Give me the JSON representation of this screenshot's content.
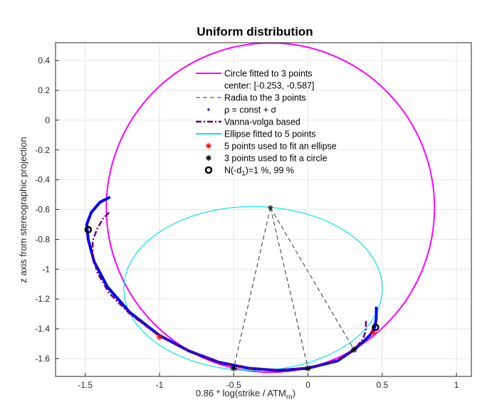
{
  "chart_data": {
    "type": "line",
    "title": "Uniform distribution",
    "xlabel": "0.86 * log(strike / ATM",
    "xlabel_sub": "rn",
    "xlabel_end": ")",
    "ylabel": "z axis from stereographic projection",
    "xlim": [
      -1.7,
      1.1
    ],
    "ylim": [
      -1.72,
      0.52
    ],
    "xticks": [
      -1.5,
      -1,
      -0.5,
      0,
      0.5,
      1
    ],
    "xtick_labels": [
      "-1.5",
      "-1",
      "-0.5",
      "0",
      "0.5",
      "1"
    ],
    "yticks": [
      0.4,
      0.2,
      0,
      -0.2,
      -0.4,
      -0.6,
      -0.8,
      -1,
      -1.2,
      -1.4,
      -1.6
    ],
    "ytick_labels": [
      "0.4",
      "0.2",
      "0",
      "-0.2",
      "-0.4",
      "-0.6",
      "-0.8",
      "-1",
      "-1.2",
      "-1.4",
      "-1.6"
    ],
    "grid": true,
    "legend_position": "top-center",
    "legend": [
      {
        "label": "Circle fitted to 3 points",
        "marker": "line",
        "color": "#ff00ff"
      },
      {
        "label": "center: [-0.253, -0.587]",
        "marker": "none",
        "color": ""
      },
      {
        "label": "Radia to the 3 points",
        "marker": "dash",
        "color": "#333333"
      },
      {
        "label": "ρ = const + σ",
        "marker": "dot",
        "color": "#0000ff"
      },
      {
        "label": "Vanna-volga based",
        "marker": "dashdot",
        "color": "#6b006b"
      },
      {
        "label": "Ellipse fitted to 5 points",
        "marker": "line",
        "color": "#00e5ee"
      },
      {
        "label": "5 points used to fit an ellipse",
        "marker": "star",
        "color": "#ff0000"
      },
      {
        "label": "3 points used to fit a circle",
        "marker": "star",
        "color": "#000000"
      },
      {
        "label": "N(-d",
        "label_sub": "1",
        "label_end": ")=1 %, 99 %",
        "marker": "circle",
        "color": "#000000"
      }
    ],
    "circle": {
      "center": [
        -0.253,
        -0.587
      ],
      "radius": 1.105
    },
    "ellipse": {
      "center": [
        -0.37,
        -1.13
      ],
      "rx": 0.87,
      "ry": 0.55
    },
    "circle_points": [
      [
        -0.5,
        -1.665
      ],
      [
        0,
        -1.665
      ],
      [
        0.31,
        -1.54
      ]
    ],
    "ellipse_points": [
      [
        -1.0,
        -1.455
      ],
      [
        0.44,
        -1.425
      ]
    ],
    "nd1_points": [
      [
        -1.48,
        -0.735
      ],
      [
        0.455,
        -1.39
      ]
    ],
    "series": [
      {
        "name": "ρ = const + σ",
        "color": "#0000ff",
        "x": [
          -1.34,
          -1.4,
          -1.46,
          -1.49,
          -1.48,
          -1.44,
          -1.35,
          -1.2,
          -1.0,
          -0.8,
          -0.6,
          -0.4,
          -0.2,
          0.0,
          0.2,
          0.31,
          0.38,
          0.42,
          0.45,
          0.46,
          0.46
        ],
        "y": [
          -0.52,
          -0.55,
          -0.62,
          -0.7,
          -0.8,
          -0.95,
          -1.12,
          -1.29,
          -1.445,
          -1.55,
          -1.625,
          -1.665,
          -1.68,
          -1.665,
          -1.615,
          -1.54,
          -1.48,
          -1.44,
          -1.39,
          -1.33,
          -1.26
        ]
      },
      {
        "name": "Vanna-volga based",
        "color": "#6b006b",
        "x": [
          -1.34,
          -1.38,
          -1.42,
          -1.45,
          -1.45,
          -1.42,
          -1.34,
          -1.2,
          -1.0,
          -0.8,
          -0.6,
          -0.4,
          -0.2,
          0.0,
          0.2,
          0.31,
          0.37,
          0.39,
          0.39
        ],
        "y": [
          -0.62,
          -0.66,
          -0.73,
          -0.81,
          -0.9,
          -1.02,
          -1.16,
          -1.3,
          -1.45,
          -1.55,
          -1.625,
          -1.665,
          -1.678,
          -1.665,
          -1.61,
          -1.54,
          -1.47,
          -1.41,
          -1.34
        ]
      }
    ]
  }
}
